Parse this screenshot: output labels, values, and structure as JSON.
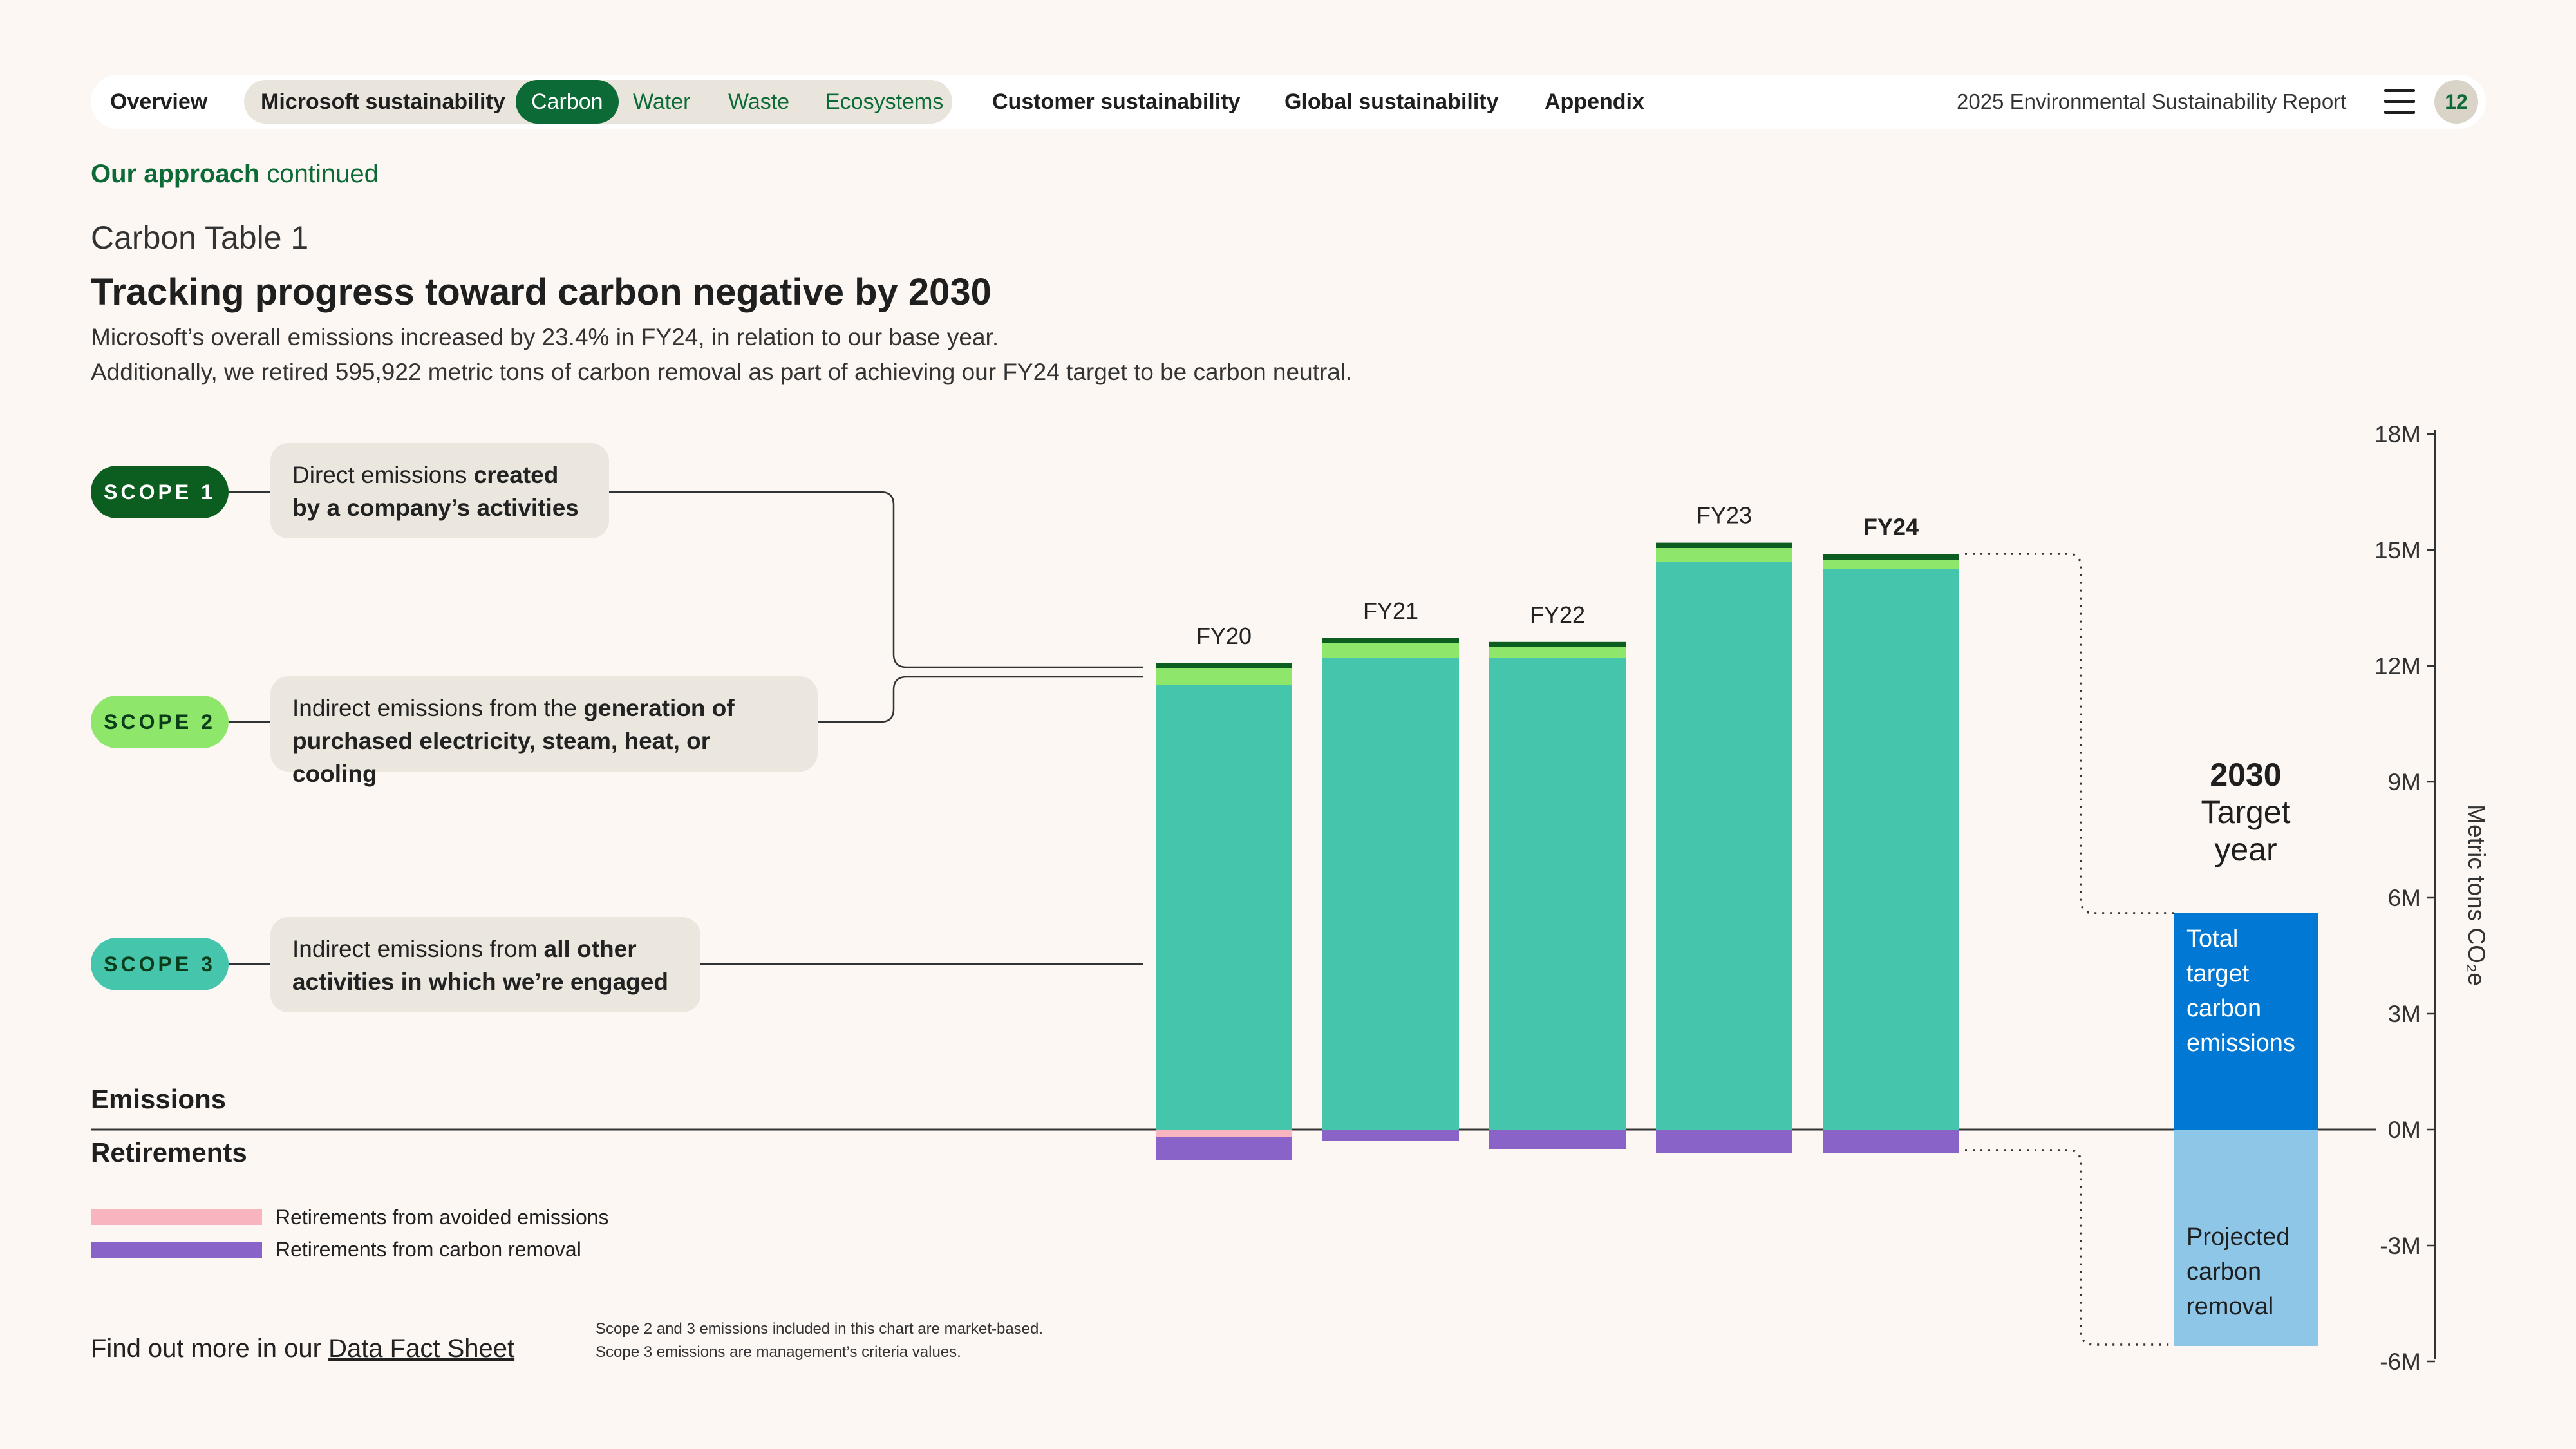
{
  "nav": {
    "items": [
      {
        "label": "Overview"
      },
      {
        "label": "Microsoft sustainability"
      },
      {
        "label": "Carbon"
      },
      {
        "label": "Water"
      },
      {
        "label": "Waste"
      },
      {
        "label": "Ecosystems"
      },
      {
        "label": "Customer sustainability"
      },
      {
        "label": "Global sustainability"
      },
      {
        "label": "Appendix"
      }
    ],
    "active": "Carbon",
    "report_title": "2025 Environmental Sustainability Report",
    "page_number": "12"
  },
  "header": {
    "approach_bold": "Our approach",
    "approach_rest": " continued",
    "table_label": "Carbon Table 1",
    "title": "Tracking progress toward carbon negative by 2030",
    "subtitle_line1": "Microsoft’s overall emissions increased by 23.4% in FY24, in relation to our base year.",
    "subtitle_line2": "Additionally, we retired 595,922 metric tons of carbon removal as part of achieving our FY24 target to be carbon neutral."
  },
  "scopes": [
    {
      "label": "SCOPE 1",
      "text_a": "Direct emissions ",
      "text_b": "created",
      "text_c": "by a company’s activities",
      "color": "#0b5e1f",
      "text_color": "#ffffff"
    },
    {
      "label": "SCOPE 2",
      "text_a": "Indirect emissions from the ",
      "text_b": "generation of",
      "text_c": "purchased electricity, steam, heat, or cooling",
      "color": "#8ee76b",
      "text_color": "#0b3d1a"
    },
    {
      "label": "SCOPE 3",
      "text_a": "Indirect emissions from ",
      "text_b": "all other",
      "text_c": "activities in which we’re engaged",
      "color": "#46c5ad",
      "text_color": "#0b3d1a"
    }
  ],
  "sections": {
    "emissions": "Emissions",
    "retirements": "Retirements"
  },
  "legend": [
    {
      "label": "Retirements from avoided emissions",
      "color": "#f8b5c0"
    },
    {
      "label": "Retirements from carbon removal",
      "color": "#8a63c9"
    }
  ],
  "footer": {
    "text": "Find out more in our ",
    "link": "Data Fact Sheet",
    "note1": "Scope 2 and 3 emissions included in this chart are market-based.",
    "note2": "Scope 3 emissions are management’s criteria values."
  },
  "chart_data": {
    "type": "bar",
    "stacked": true,
    "categories": [
      "FY20",
      "FY21",
      "FY22",
      "FY23",
      "FY24"
    ],
    "series": [
      {
        "name": "SCOPE 3",
        "values": [
          11.5,
          12.2,
          12.2,
          14.7,
          14.5
        ],
        "color": "#46c5ad"
      },
      {
        "name": "SCOPE 2",
        "values": [
          0.45,
          0.4,
          0.3,
          0.35,
          0.25
        ],
        "color": "#8ee76b"
      },
      {
        "name": "SCOPE 1",
        "values": [
          0.12,
          0.12,
          0.12,
          0.14,
          0.14
        ],
        "color": "#0b5e1f"
      },
      {
        "name": "Retirements from avoided emissions",
        "values": [
          -0.2,
          0,
          0,
          0,
          0
        ],
        "color": "#f8b5c0"
      },
      {
        "name": "Retirements from carbon removal",
        "values": [
          -0.6,
          -0.3,
          -0.5,
          -0.6,
          -0.6
        ],
        "color": "#8a63c9"
      }
    ],
    "target": {
      "heading": "2030",
      "line2": "Target",
      "line3": "year",
      "emissions_value": 5.6,
      "emissions_label": [
        "Total",
        "target",
        "carbon",
        "emissions"
      ],
      "emissions_color": "#0078d4",
      "removal_value": -5.6,
      "removal_label": [
        "Projected",
        "carbon",
        "removal"
      ],
      "removal_color": "#8ec6e8"
    },
    "ylabel": "Metric tons CO₂e",
    "yticks": [
      "18M",
      "15M",
      "12M",
      "9M",
      "6M",
      "3M",
      "0M",
      "-3M",
      "-6M"
    ],
    "ylim": [
      -6,
      18
    ],
    "bold_category": "FY24"
  }
}
